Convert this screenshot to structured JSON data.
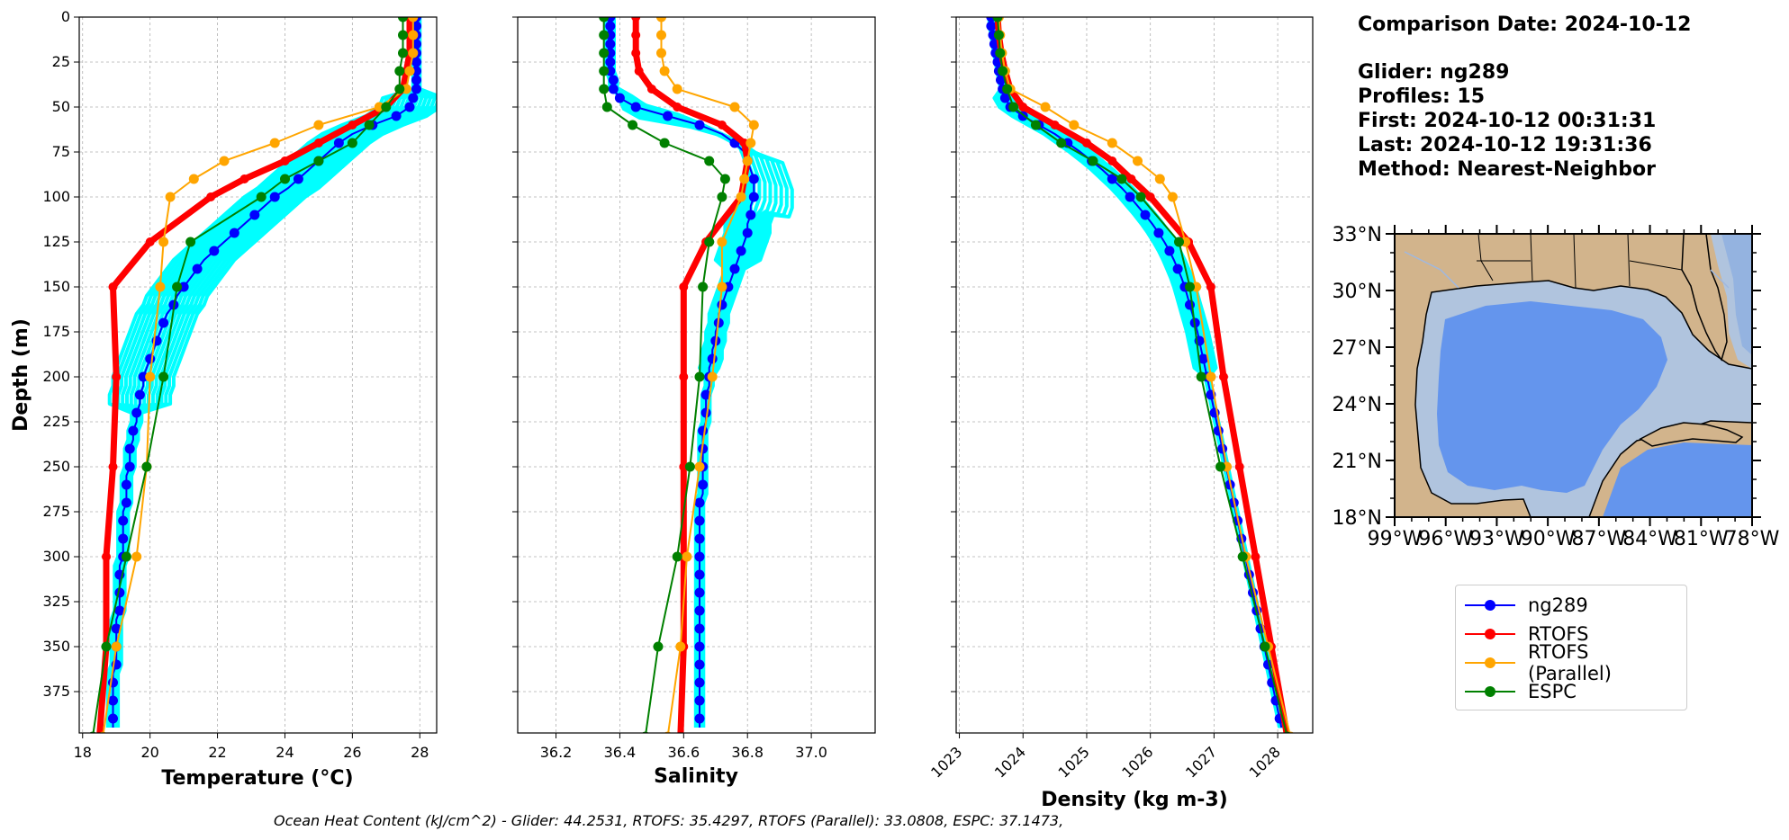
{
  "info": {
    "comparison": "Comparison Date: 2024-10-12",
    "glider": "Glider: ng289",
    "profiles": "Profiles: 15",
    "first": "First: 2024-10-12 00:31:31",
    "last": "Last: 2024-10-12 19:31:36",
    "method": "Method: Nearest-Neighbor"
  },
  "ohc_text": "Ocean Heat Content (kJ/cm^2) - Glider: 44.2531,  RTOFS: 35.4297,  RTOFS (Parallel): 33.0808,  ESPC: 37.1473,",
  "legend": [
    {
      "label": "ng289",
      "color": "#0000ff"
    },
    {
      "label": "RTOFS",
      "color": "#ff0000"
    },
    {
      "label": "RTOFS (Parallel)",
      "color": "#ffa500"
    },
    {
      "label": "ESPC",
      "color": "#008000"
    }
  ],
  "colors": {
    "glider_profiles": "#00ffff",
    "ng289": "#0000ff",
    "rtofs": "#ff0000",
    "rtofs_parallel": "#ffa500",
    "espc": "#008000",
    "grid": "#b0b0b0"
  },
  "chart_data": [
    {
      "type": "line",
      "xlabel": "Temperature (°C)",
      "ylabel": "Depth (m)",
      "xlim": [
        17.9,
        28.5
      ],
      "ylim": [
        398,
        0
      ],
      "xticks": [
        18,
        20,
        22,
        24,
        26,
        28
      ],
      "yticks": [
        0,
        25,
        50,
        75,
        100,
        125,
        150,
        175,
        200,
        225,
        250,
        275,
        300,
        325,
        350,
        375
      ],
      "grid": true,
      "series": [
        {
          "name": "ng289",
          "depth": [
            0,
            5,
            10,
            15,
            20,
            25,
            30,
            35,
            40,
            45,
            50,
            55,
            60,
            65,
            70,
            75,
            80,
            85,
            90,
            95,
            100,
            105,
            110,
            115,
            120,
            125,
            130,
            135,
            140,
            145,
            150,
            155,
            160,
            165,
            170,
            175,
            180,
            185,
            190,
            195,
            200,
            205,
            210,
            215,
            220,
            225,
            230,
            235,
            240,
            245,
            250,
            255,
            260,
            265,
            270,
            275,
            280,
            285,
            290,
            295,
            300,
            305,
            310,
            315,
            320,
            325,
            330,
            335,
            340,
            345,
            350,
            355,
            360,
            365,
            370,
            375,
            380,
            385,
            390,
            395
          ],
          "values": [
            27.9,
            27.9,
            27.9,
            27.9,
            27.9,
            27.9,
            27.9,
            27.9,
            27.9,
            27.8,
            27.7,
            27.3,
            26.6,
            26.0,
            25.6,
            25.3,
            25.0,
            24.7,
            24.4,
            24.1,
            23.7,
            23.4,
            23.1,
            22.8,
            22.5,
            22.2,
            21.9,
            21.6,
            21.4,
            21.2,
            21.0,
            20.8,
            20.7,
            20.5,
            20.4,
            20.3,
            20.2,
            20.1,
            20.0,
            19.9,
            19.8,
            19.8,
            19.7,
            19.7,
            19.6,
            19.6,
            19.5,
            19.5,
            19.4,
            19.4,
            19.4,
            19.3,
            19.3,
            19.3,
            19.3,
            19.2,
            19.2,
            19.2,
            19.2,
            19.2,
            19.2,
            19.1,
            19.1,
            19.1,
            19.1,
            19.1,
            19.1,
            19.0,
            19.0,
            19.0,
            19.0,
            19.0,
            19.0,
            18.9,
            18.9,
            18.9,
            18.9,
            18.9,
            18.9,
            18.9
          ]
        },
        {
          "name": "RTOFS",
          "depth": [
            0,
            10,
            20,
            30,
            40,
            50,
            60,
            70,
            80,
            90,
            100,
            125,
            150,
            200,
            250,
            300,
            350,
            400
          ],
          "values": [
            27.7,
            27.7,
            27.7,
            27.6,
            27.5,
            27.0,
            26.0,
            25.0,
            24.0,
            22.8,
            21.8,
            20.0,
            18.9,
            19.0,
            18.9,
            18.7,
            18.7,
            18.5
          ]
        },
        {
          "name": "RTOFS (Parallel)",
          "depth": [
            0,
            10,
            20,
            30,
            40,
            50,
            60,
            70,
            80,
            90,
            100,
            125,
            150,
            200,
            250,
            300,
            350,
            400
          ],
          "values": [
            27.8,
            27.8,
            27.8,
            27.7,
            27.6,
            26.8,
            25.0,
            23.7,
            22.2,
            21.3,
            20.6,
            20.4,
            20.3,
            20.0,
            19.9,
            19.6,
            19.0,
            18.6
          ]
        },
        {
          "name": "ESPC",
          "depth": [
            0,
            10,
            20,
            30,
            40,
            50,
            60,
            70,
            80,
            90,
            100,
            125,
            150,
            200,
            250,
            300,
            350,
            400
          ],
          "values": [
            27.5,
            27.5,
            27.5,
            27.4,
            27.4,
            27.0,
            26.5,
            26.0,
            25.0,
            24.0,
            23.3,
            21.2,
            20.8,
            20.4,
            19.9,
            19.3,
            18.7,
            18.3
          ]
        }
      ]
    },
    {
      "type": "line",
      "xlabel": "Salinity",
      "xlim": [
        36.08,
        37.2
      ],
      "ylim": [
        398,
        0
      ],
      "xticks": [
        36.2,
        36.4,
        36.6,
        36.8,
        37.0
      ],
      "grid": true,
      "series": [
        {
          "name": "ng289",
          "depth": [
            0,
            5,
            10,
            15,
            20,
            25,
            30,
            35,
            40,
            45,
            50,
            55,
            60,
            65,
            70,
            75,
            80,
            85,
            90,
            95,
            100,
            105,
            110,
            115,
            120,
            125,
            130,
            135,
            140,
            145,
            150,
            155,
            160,
            165,
            170,
            175,
            180,
            185,
            190,
            195,
            200,
            205,
            210,
            215,
            220,
            225,
            230,
            235,
            240,
            245,
            250,
            255,
            260,
            265,
            270,
            275,
            280,
            285,
            290,
            295,
            300,
            305,
            310,
            315,
            320,
            325,
            330,
            335,
            340,
            345,
            350,
            355,
            360,
            365,
            370,
            375,
            380,
            385,
            390,
            395
          ],
          "values": [
            36.37,
            36.37,
            36.37,
            36.37,
            36.37,
            36.37,
            36.37,
            36.38,
            36.38,
            36.4,
            36.45,
            36.55,
            36.65,
            36.72,
            36.76,
            36.79,
            36.8,
            36.81,
            36.82,
            36.82,
            36.82,
            36.81,
            36.81,
            36.8,
            36.8,
            36.79,
            36.78,
            36.77,
            36.76,
            36.75,
            36.74,
            36.73,
            36.72,
            36.71,
            36.71,
            36.7,
            36.7,
            36.69,
            36.69,
            36.68,
            36.68,
            36.68,
            36.67,
            36.67,
            36.67,
            36.67,
            36.66,
            36.66,
            36.66,
            36.66,
            36.66,
            36.66,
            36.66,
            36.66,
            36.65,
            36.65,
            36.65,
            36.65,
            36.65,
            36.65,
            36.65,
            36.65,
            36.65,
            36.65,
            36.65,
            36.65,
            36.65,
            36.65,
            36.65,
            36.65,
            36.65,
            36.65,
            36.65,
            36.65,
            36.65,
            36.65,
            36.65,
            36.65,
            36.65,
            36.65
          ]
        },
        {
          "name": "RTOFS",
          "depth": [
            0,
            10,
            20,
            30,
            40,
            50,
            60,
            70,
            80,
            90,
            100,
            125,
            150,
            200,
            250,
            300,
            350,
            400
          ],
          "values": [
            36.45,
            36.45,
            36.45,
            36.46,
            36.5,
            36.58,
            36.72,
            36.79,
            36.8,
            36.79,
            36.78,
            36.67,
            36.6,
            36.6,
            36.6,
            36.6,
            36.6,
            36.59
          ]
        },
        {
          "name": "RTOFS (Parallel)",
          "depth": [
            0,
            10,
            20,
            30,
            40,
            50,
            60,
            70,
            80,
            90,
            100,
            125,
            150,
            200,
            250,
            300,
            350,
            400
          ],
          "values": [
            36.53,
            36.53,
            36.53,
            36.54,
            36.58,
            36.76,
            36.82,
            36.81,
            36.8,
            36.79,
            36.78,
            36.72,
            36.72,
            36.69,
            36.65,
            36.61,
            36.59,
            36.55
          ]
        },
        {
          "name": "ESPC",
          "depth": [
            0,
            10,
            20,
            30,
            40,
            50,
            60,
            70,
            80,
            90,
            100,
            125,
            150,
            200,
            250,
            300,
            350,
            400
          ],
          "values": [
            36.35,
            36.35,
            36.35,
            36.35,
            36.35,
            36.36,
            36.44,
            36.54,
            36.68,
            36.73,
            36.72,
            36.68,
            36.66,
            36.65,
            36.62,
            36.58,
            36.52,
            36.48
          ]
        }
      ]
    },
    {
      "type": "line",
      "xlabel": "Density (kg m-3)",
      "xlim": [
        1022.95,
        1028.55
      ],
      "ylim": [
        398,
        0
      ],
      "xticks": [
        1023,
        1024,
        1025,
        1026,
        1027,
        1028
      ],
      "grid": true,
      "series": [
        {
          "name": "ng289",
          "depth": [
            0,
            5,
            10,
            15,
            20,
            25,
            30,
            35,
            40,
            45,
            50,
            55,
            60,
            65,
            70,
            75,
            80,
            85,
            90,
            95,
            100,
            105,
            110,
            115,
            120,
            125,
            130,
            135,
            140,
            145,
            150,
            155,
            160,
            165,
            170,
            175,
            180,
            185,
            190,
            195,
            200,
            205,
            210,
            215,
            220,
            225,
            230,
            235,
            240,
            245,
            250,
            255,
            260,
            265,
            270,
            275,
            280,
            285,
            290,
            295,
            300,
            305,
            310,
            315,
            320,
            325,
            330,
            335,
            340,
            345,
            350,
            355,
            360,
            365,
            370,
            375,
            380,
            385,
            390,
            395
          ],
          "values": [
            1023.5,
            1023.5,
            1023.53,
            1023.55,
            1023.57,
            1023.6,
            1023.62,
            1023.65,
            1023.68,
            1023.72,
            1023.8,
            1024.0,
            1024.25,
            1024.5,
            1024.7,
            1024.9,
            1025.08,
            1025.25,
            1025.4,
            1025.55,
            1025.68,
            1025.8,
            1025.92,
            1026.03,
            1026.13,
            1026.22,
            1026.3,
            1026.37,
            1026.43,
            1026.49,
            1026.54,
            1026.58,
            1026.62,
            1026.66,
            1026.7,
            1026.74,
            1026.77,
            1026.8,
            1026.83,
            1026.86,
            1026.89,
            1026.92,
            1026.95,
            1026.98,
            1027.01,
            1027.04,
            1027.07,
            1027.1,
            1027.13,
            1027.16,
            1027.19,
            1027.22,
            1027.25,
            1027.28,
            1027.31,
            1027.34,
            1027.37,
            1027.4,
            1027.43,
            1027.46,
            1027.49,
            1027.52,
            1027.55,
            1027.58,
            1027.61,
            1027.64,
            1027.67,
            1027.7,
            1027.73,
            1027.76,
            1027.79,
            1027.82,
            1027.85,
            1027.88,
            1027.91,
            1027.94,
            1027.97,
            1028.0,
            1028.03,
            1028.06
          ]
        },
        {
          "name": "RTOFS",
          "depth": [
            0,
            10,
            20,
            30,
            40,
            50,
            60,
            70,
            80,
            90,
            100,
            125,
            150,
            200,
            250,
            300,
            350,
            400
          ],
          "values": [
            1023.6,
            1023.62,
            1023.66,
            1023.72,
            1023.8,
            1024.0,
            1024.5,
            1025.0,
            1025.4,
            1025.7,
            1026.0,
            1026.6,
            1026.95,
            1027.15,
            1027.4,
            1027.65,
            1027.9,
            1028.15
          ]
        },
        {
          "name": "RTOFS (Parallel)",
          "depth": [
            0,
            10,
            20,
            30,
            40,
            50,
            60,
            70,
            80,
            90,
            100,
            125,
            150,
            200,
            250,
            300,
            350,
            400
          ],
          "values": [
            1023.62,
            1023.64,
            1023.67,
            1023.72,
            1023.8,
            1024.35,
            1024.8,
            1025.4,
            1025.8,
            1026.15,
            1026.35,
            1026.55,
            1026.72,
            1026.95,
            1027.2,
            1027.5,
            1027.85,
            1028.2
          ]
        },
        {
          "name": "ESPC",
          "depth": [
            0,
            10,
            20,
            30,
            40,
            50,
            60,
            70,
            80,
            90,
            100,
            125,
            150,
            200,
            250,
            300,
            350,
            400
          ],
          "values": [
            1023.6,
            1023.62,
            1023.64,
            1023.68,
            1023.75,
            1023.85,
            1024.2,
            1024.6,
            1025.1,
            1025.55,
            1025.85,
            1026.45,
            1026.62,
            1026.8,
            1027.1,
            1027.45,
            1027.8,
            1028.15
          ]
        }
      ]
    },
    {
      "type": "map",
      "lat_ticks": [
        "33°N",
        "30°N",
        "27°N",
        "24°N",
        "21°N",
        "18°N"
      ],
      "lon_ticks": [
        "99°W",
        "96°W",
        "93°W",
        "90°W",
        "87°W",
        "84°W",
        "81°W",
        "78°W"
      ],
      "extent": {
        "lon": [
          -99,
          -78
        ],
        "lat": [
          18,
          33
        ]
      }
    }
  ]
}
